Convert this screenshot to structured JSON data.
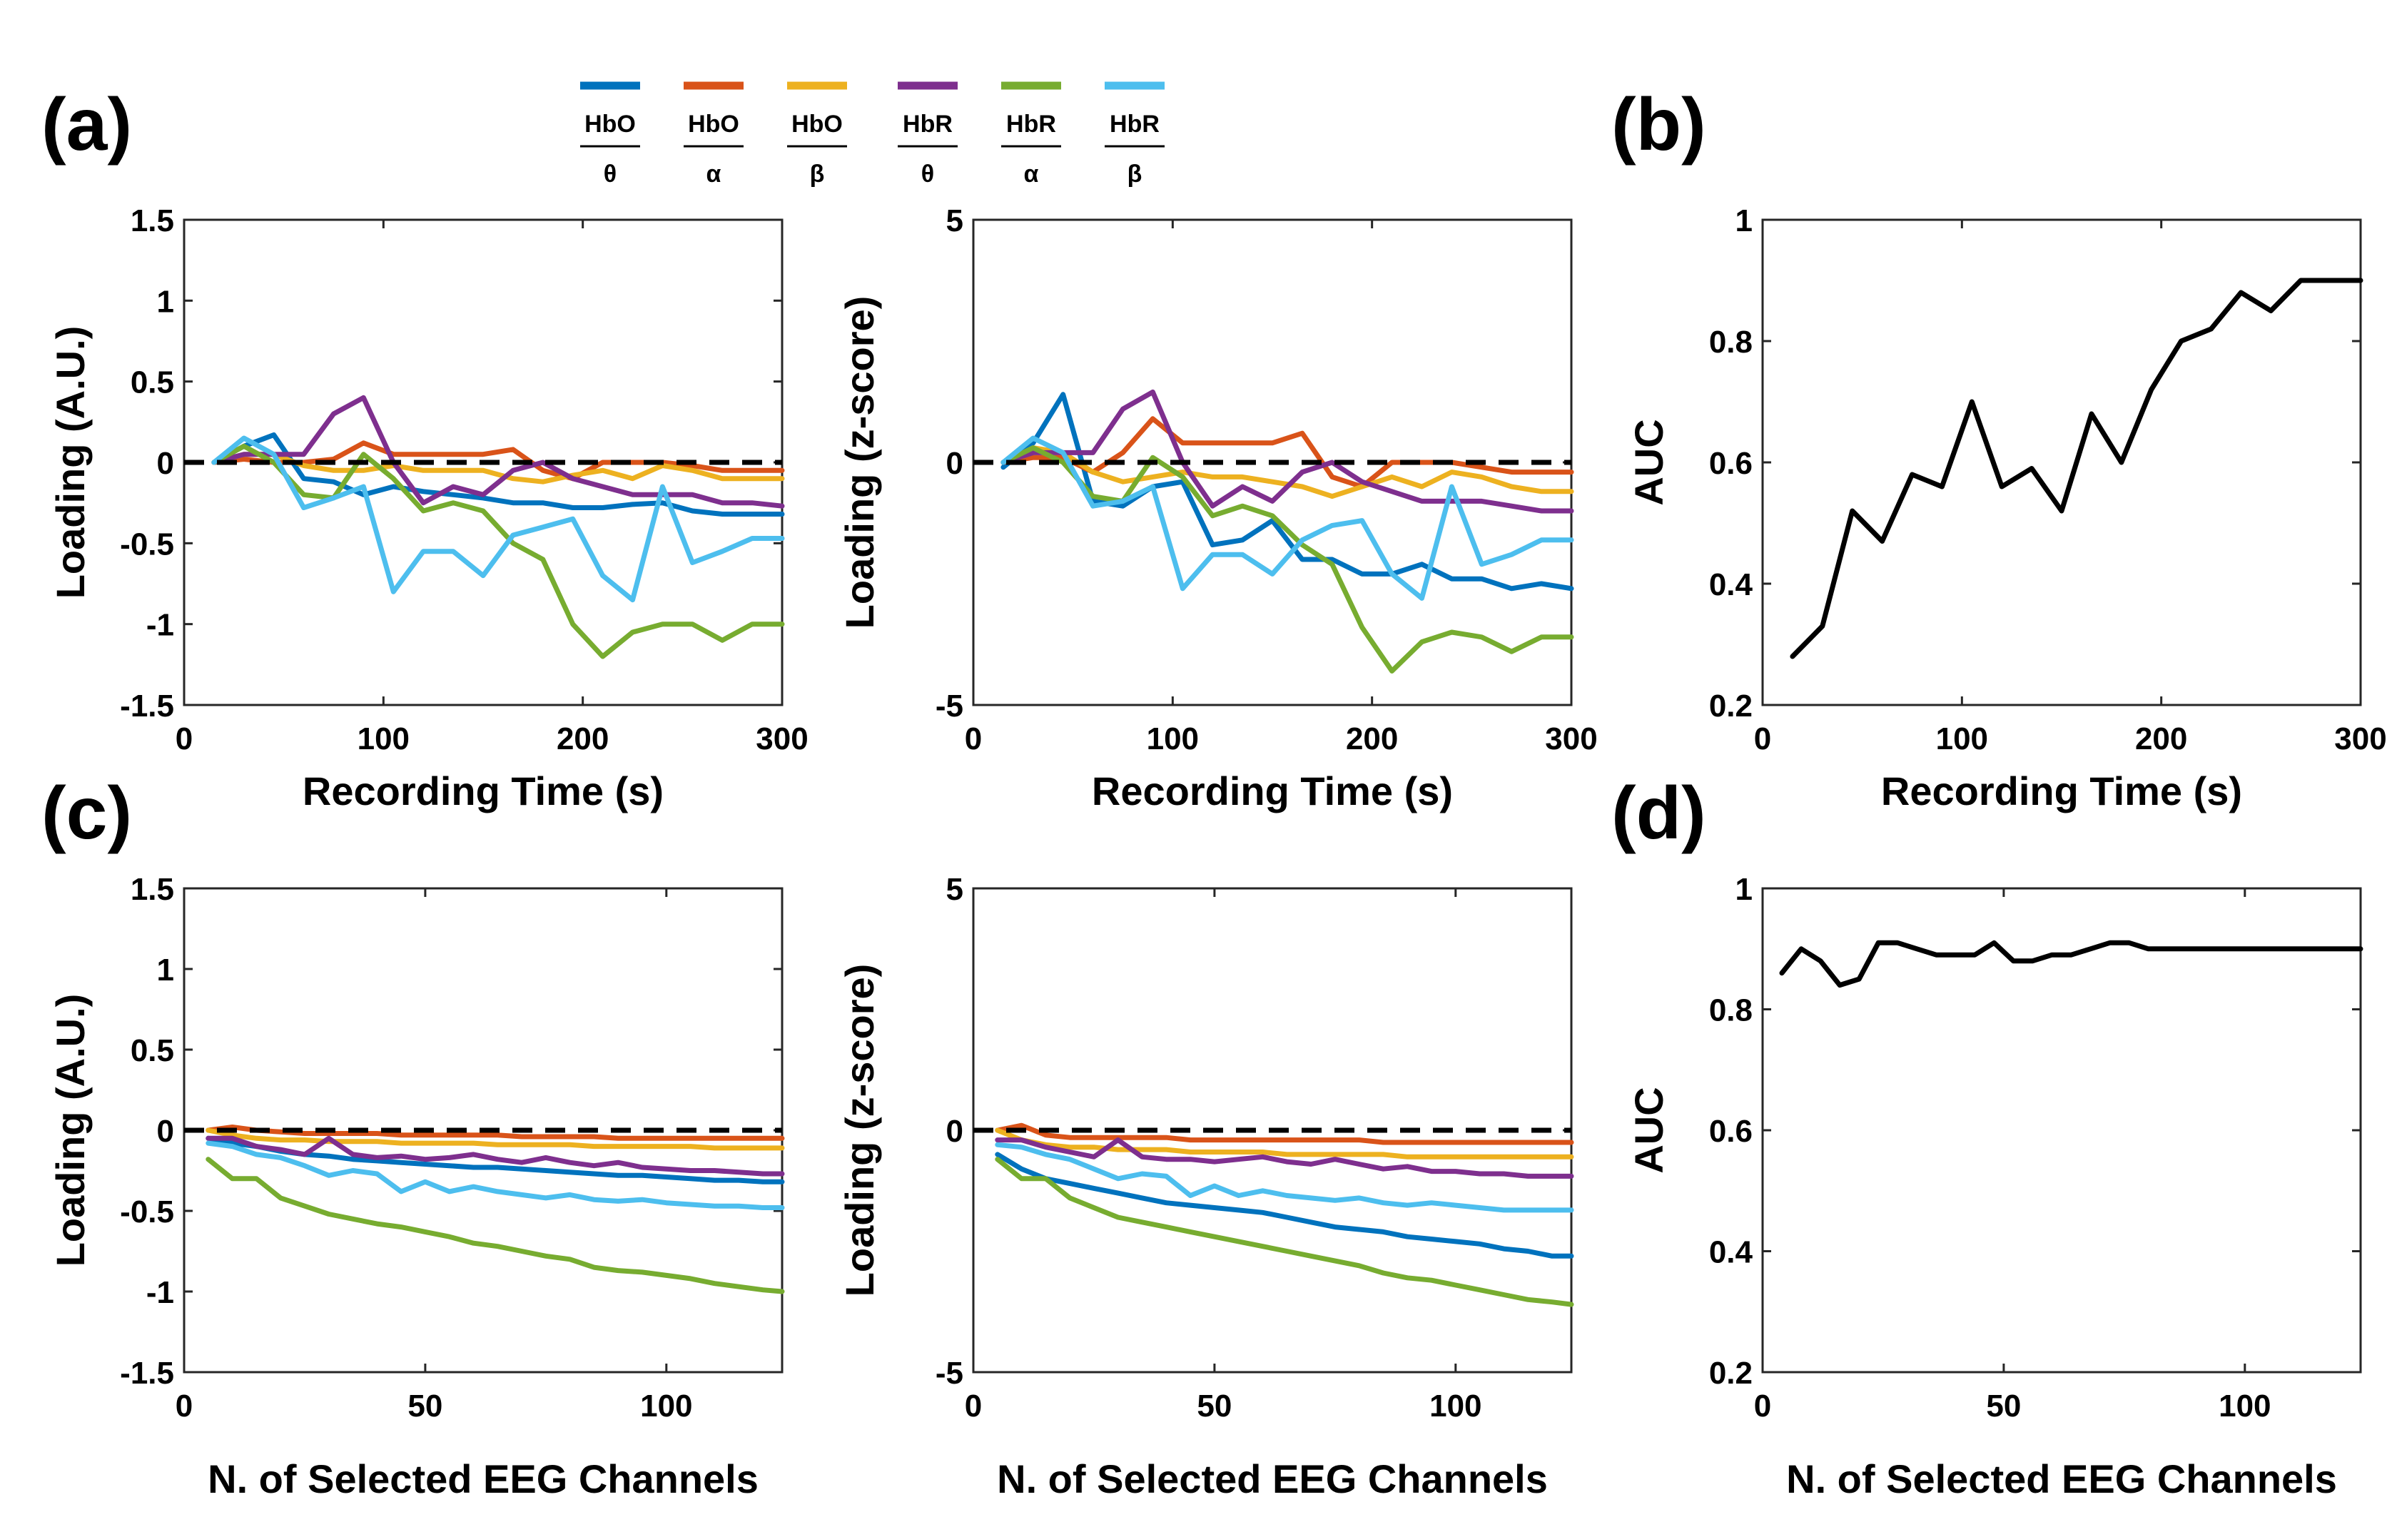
{
  "legend": [
    {
      "num": "HbO",
      "den": "θ",
      "color": "#0072BD"
    },
    {
      "num": "HbO",
      "den": "α",
      "color": "#D95319"
    },
    {
      "num": "HbO",
      "den": "β",
      "color": "#EDB120"
    },
    {
      "num": "HbR",
      "den": "θ",
      "color": "#7E2F8E"
    },
    {
      "num": "HbR",
      "den": "α",
      "color": "#77AC30"
    },
    {
      "num": "HbR",
      "den": "β",
      "color": "#4DBEEE"
    }
  ],
  "panel_labels": {
    "a": "(a)",
    "b": "(b)",
    "c": "(c)",
    "d": "(d)"
  },
  "chart_data": [
    {
      "id": "a1",
      "type": "line",
      "xlabel": "Recording Time (s)",
      "ylabel": "Loading (A.U.)",
      "xlim": [
        0,
        300
      ],
      "ylim": [
        -1.5,
        1.5
      ],
      "xticks": [
        0,
        100,
        200,
        300
      ],
      "xtick_labels": [
        "0",
        "100",
        "200",
        "300"
      ],
      "yticks": [
        -1.5,
        -1,
        -0.5,
        0,
        0.5,
        1,
        1.5
      ],
      "ytick_labels": [
        "-1.5",
        "-1",
        "-0.5",
        "0",
        "0.5",
        "1",
        "1.5"
      ],
      "reference_line": 0,
      "x": [
        15,
        30,
        45,
        60,
        75,
        90,
        105,
        120,
        135,
        150,
        165,
        180,
        195,
        210,
        225,
        240,
        255,
        270,
        285,
        300
      ],
      "series": [
        {
          "name": "HbO/θ",
          "values": [
            0,
            0.1,
            0.17,
            -0.1,
            -0.12,
            -0.2,
            -0.15,
            -0.18,
            -0.2,
            -0.22,
            -0.25,
            -0.25,
            -0.28,
            -0.28,
            -0.26,
            -0.25,
            -0.3,
            -0.32,
            -0.32,
            -0.32
          ]
        },
        {
          "name": "HbO/α",
          "values": [
            0,
            0.02,
            0,
            0,
            0.02,
            0.12,
            0.05,
            0.05,
            0.05,
            0.05,
            0.08,
            -0.05,
            -0.1,
            0,
            0,
            0,
            -0.02,
            -0.05,
            -0.05,
            -0.05
          ]
        },
        {
          "name": "HbO/β",
          "values": [
            0,
            0.05,
            0.05,
            -0.02,
            -0.05,
            -0.05,
            -0.02,
            -0.05,
            -0.05,
            -0.05,
            -0.1,
            -0.12,
            -0.08,
            -0.05,
            -0.1,
            -0.02,
            -0.05,
            -0.1,
            -0.1,
            -0.1
          ]
        },
        {
          "name": "HbR/θ",
          "values": [
            0,
            0.05,
            0.05,
            0.05,
            0.3,
            0.4,
            0,
            -0.25,
            -0.15,
            -0.2,
            -0.05,
            0,
            -0.1,
            -0.15,
            -0.2,
            -0.2,
            -0.2,
            -0.25,
            -0.25,
            -0.27
          ]
        },
        {
          "name": "HbR/α",
          "values": [
            0,
            0.1,
            0,
            -0.2,
            -0.22,
            0.05,
            -0.1,
            -0.3,
            -0.25,
            -0.3,
            -0.5,
            -0.6,
            -1,
            -1.2,
            -1.05,
            -1,
            -1,
            -1.1,
            -1,
            -1
          ]
        },
        {
          "name": "HbR/β",
          "values": [
            0,
            0.15,
            0.05,
            -0.28,
            -0.22,
            -0.15,
            -0.8,
            -0.55,
            -0.55,
            -0.7,
            -0.45,
            -0.4,
            -0.35,
            -0.7,
            -0.85,
            -0.15,
            -0.62,
            -0.55,
            -0.47,
            -0.47
          ]
        }
      ]
    },
    {
      "id": "a2",
      "type": "line",
      "xlabel": "Recording Time (s)",
      "ylabel": "Loading (z-score)",
      "xlim": [
        0,
        300
      ],
      "ylim": [
        -5,
        5
      ],
      "xticks": [
        0,
        100,
        200,
        300
      ],
      "xtick_labels": [
        "0",
        "100",
        "200",
        "300"
      ],
      "yticks": [
        -5,
        0,
        5
      ],
      "ytick_labels": [
        "-5",
        "0",
        "5"
      ],
      "reference_line": 0,
      "x": [
        15,
        30,
        45,
        60,
        75,
        90,
        105,
        120,
        135,
        150,
        165,
        180,
        195,
        210,
        225,
        240,
        255,
        270,
        285,
        300
      ],
      "series": [
        {
          "name": "HbO/θ",
          "values": [
            -0.1,
            0.4,
            1.4,
            -0.8,
            -0.9,
            -0.5,
            -0.4,
            -1.7,
            -1.6,
            -1.2,
            -2,
            -2,
            -2.3,
            -2.3,
            -2.1,
            -2.4,
            -2.4,
            -2.6,
            -2.5,
            -2.6
          ]
        },
        {
          "name": "HbO/α",
          "values": [
            0,
            0.1,
            0.1,
            -0.2,
            0.2,
            0.9,
            0.4,
            0.4,
            0.4,
            0.4,
            0.6,
            -0.3,
            -0.5,
            0,
            0,
            0,
            -0.1,
            -0.2,
            -0.2,
            -0.2
          ]
        },
        {
          "name": "HbO/β",
          "values": [
            0,
            0.3,
            0.2,
            -0.2,
            -0.4,
            -0.3,
            -0.2,
            -0.3,
            -0.3,
            -0.4,
            -0.5,
            -0.7,
            -0.5,
            -0.3,
            -0.5,
            -0.2,
            -0.3,
            -0.5,
            -0.6,
            -0.6
          ]
        },
        {
          "name": "HbR/θ",
          "values": [
            0,
            0.2,
            0.2,
            0.2,
            1.1,
            1.45,
            0,
            -0.9,
            -0.5,
            -0.8,
            -0.2,
            0,
            -0.4,
            -0.6,
            -0.8,
            -0.8,
            -0.8,
            -0.9,
            -1,
            -1
          ]
        },
        {
          "name": "HbR/α",
          "values": [
            0,
            0.3,
            0,
            -0.7,
            -0.8,
            0.1,
            -0.3,
            -1.1,
            -0.9,
            -1.1,
            -1.7,
            -2.1,
            -3.4,
            -4.3,
            -3.7,
            -3.5,
            -3.6,
            -3.9,
            -3.6,
            -3.6
          ]
        },
        {
          "name": "HbR/β",
          "values": [
            0,
            0.5,
            0.2,
            -0.9,
            -0.8,
            -0.5,
            -2.6,
            -1.9,
            -1.9,
            -2.3,
            -1.6,
            -1.3,
            -1.2,
            -2.3,
            -2.8,
            -0.5,
            -2.1,
            -1.9,
            -1.6,
            -1.6
          ]
        }
      ]
    },
    {
      "id": "b",
      "type": "line",
      "xlabel": "Recording Time (s)",
      "ylabel": "AUC",
      "xlim": [
        0,
        300
      ],
      "ylim": [
        0.2,
        1
      ],
      "xticks": [
        0,
        100,
        200,
        300
      ],
      "xtick_labels": [
        "0",
        "100",
        "200",
        "300"
      ],
      "yticks": [
        0.2,
        0.4,
        0.6,
        0.8,
        1
      ],
      "ytick_labels": [
        "0.2",
        "0.4",
        "0.6",
        "0.8",
        "1"
      ],
      "x": [
        15,
        30,
        45,
        60,
        75,
        90,
        105,
        120,
        135,
        150,
        165,
        180,
        195,
        210,
        225,
        240,
        255,
        270,
        285,
        300
      ],
      "series": [
        {
          "name": "AUC",
          "values": [
            0.28,
            0.33,
            0.52,
            0.47,
            0.58,
            0.56,
            0.7,
            0.56,
            0.59,
            0.52,
            0.68,
            0.6,
            0.72,
            0.8,
            0.82,
            0.88,
            0.85,
            0.9,
            0.9,
            0.9
          ]
        }
      ]
    },
    {
      "id": "c1",
      "type": "line",
      "xlabel": "N. of Selected EEG Channels",
      "ylabel": "Loading (A.U.)",
      "xlim": [
        0,
        124
      ],
      "ylim": [
        -1.5,
        1.5
      ],
      "xticks": [
        0,
        50,
        100
      ],
      "xtick_labels": [
        "0",
        "50",
        "100"
      ],
      "yticks": [
        -1.5,
        -1,
        -0.5,
        0,
        0.5,
        1,
        1.5
      ],
      "ytick_labels": [
        "-1.5",
        "-1",
        "-0.5",
        "0",
        "0.5",
        "1",
        "1.5"
      ],
      "reference_line": 0,
      "x": [
        5,
        10,
        15,
        20,
        25,
        30,
        35,
        40,
        45,
        50,
        55,
        60,
        65,
        70,
        75,
        80,
        85,
        90,
        95,
        100,
        105,
        110,
        115,
        120,
        124
      ],
      "series": [
        {
          "name": "HbO/θ",
          "values": [
            -0.05,
            -0.08,
            -0.1,
            -0.13,
            -0.15,
            -0.16,
            -0.18,
            -0.19,
            -0.2,
            -0.21,
            -0.22,
            -0.23,
            -0.23,
            -0.24,
            -0.25,
            -0.26,
            -0.27,
            -0.28,
            -0.28,
            -0.29,
            -0.3,
            -0.31,
            -0.31,
            -0.32,
            -0.32
          ]
        },
        {
          "name": "HbO/α",
          "values": [
            0,
            0.02,
            0,
            -0.01,
            -0.02,
            -0.02,
            -0.02,
            -0.02,
            -0.03,
            -0.03,
            -0.03,
            -0.03,
            -0.03,
            -0.04,
            -0.04,
            -0.04,
            -0.04,
            -0.05,
            -0.05,
            -0.05,
            -0.05,
            -0.05,
            -0.05,
            -0.05,
            -0.05
          ]
        },
        {
          "name": "HbO/β",
          "values": [
            0,
            -0.03,
            -0.05,
            -0.06,
            -0.06,
            -0.07,
            -0.07,
            -0.07,
            -0.08,
            -0.08,
            -0.08,
            -0.08,
            -0.09,
            -0.09,
            -0.09,
            -0.09,
            -0.1,
            -0.1,
            -0.1,
            -0.1,
            -0.1,
            -0.11,
            -0.11,
            -0.11,
            -0.11
          ]
        },
        {
          "name": "HbR/θ",
          "values": [
            -0.05,
            -0.05,
            -0.1,
            -0.12,
            -0.15,
            -0.05,
            -0.15,
            -0.17,
            -0.16,
            -0.18,
            -0.17,
            -0.15,
            -0.18,
            -0.2,
            -0.17,
            -0.2,
            -0.22,
            -0.2,
            -0.23,
            -0.24,
            -0.25,
            -0.25,
            -0.26,
            -0.27,
            -0.27
          ]
        },
        {
          "name": "HbR/α",
          "values": [
            -0.18,
            -0.3,
            -0.3,
            -0.42,
            -0.47,
            -0.52,
            -0.55,
            -0.58,
            -0.6,
            -0.63,
            -0.66,
            -0.7,
            -0.72,
            -0.75,
            -0.78,
            -0.8,
            -0.85,
            -0.87,
            -0.88,
            -0.9,
            -0.92,
            -0.95,
            -0.97,
            -0.99,
            -1
          ]
        },
        {
          "name": "HbR/β",
          "values": [
            -0.08,
            -0.1,
            -0.15,
            -0.17,
            -0.22,
            -0.28,
            -0.25,
            -0.27,
            -0.38,
            -0.32,
            -0.38,
            -0.35,
            -0.38,
            -0.4,
            -0.42,
            -0.4,
            -0.43,
            -0.44,
            -0.43,
            -0.45,
            -0.46,
            -0.47,
            -0.47,
            -0.48,
            -0.48
          ]
        }
      ]
    },
    {
      "id": "c2",
      "type": "line",
      "xlabel": "N. of Selected EEG Channels",
      "ylabel": "Loading (z-score)",
      "xlim": [
        0,
        124
      ],
      "ylim": [
        -5,
        5
      ],
      "xticks": [
        0,
        50,
        100
      ],
      "xtick_labels": [
        "0",
        "50",
        "100"
      ],
      "yticks": [
        -5,
        0,
        5
      ],
      "ytick_labels": [
        "-5",
        "0",
        "5"
      ],
      "reference_line": 0,
      "x": [
        5,
        10,
        15,
        20,
        25,
        30,
        35,
        40,
        45,
        50,
        55,
        60,
        65,
        70,
        75,
        80,
        85,
        90,
        95,
        100,
        105,
        110,
        115,
        120,
        124
      ],
      "series": [
        {
          "name": "HbO/θ",
          "values": [
            -0.5,
            -0.8,
            -1,
            -1.1,
            -1.2,
            -1.3,
            -1.4,
            -1.5,
            -1.55,
            -1.6,
            -1.65,
            -1.7,
            -1.8,
            -1.9,
            -2,
            -2.05,
            -2.1,
            -2.2,
            -2.25,
            -2.3,
            -2.35,
            -2.45,
            -2.5,
            -2.6,
            -2.6
          ]
        },
        {
          "name": "HbO/α",
          "values": [
            0,
            0.1,
            -0.1,
            -0.15,
            -0.15,
            -0.15,
            -0.15,
            -0.15,
            -0.2,
            -0.2,
            -0.2,
            -0.2,
            -0.2,
            -0.2,
            -0.2,
            -0.2,
            -0.25,
            -0.25,
            -0.25,
            -0.25,
            -0.25,
            -0.25,
            -0.25,
            -0.25,
            -0.25
          ]
        },
        {
          "name": "HbO/β",
          "values": [
            0,
            -0.2,
            -0.3,
            -0.35,
            -0.35,
            -0.4,
            -0.4,
            -0.4,
            -0.45,
            -0.45,
            -0.45,
            -0.45,
            -0.5,
            -0.5,
            -0.5,
            -0.5,
            -0.5,
            -0.55,
            -0.55,
            -0.55,
            -0.55,
            -0.55,
            -0.55,
            -0.55,
            -0.55
          ]
        },
        {
          "name": "HbR/θ",
          "values": [
            -0.2,
            -0.2,
            -0.35,
            -0.45,
            -0.55,
            -0.2,
            -0.55,
            -0.6,
            -0.6,
            -0.65,
            -0.6,
            -0.55,
            -0.65,
            -0.7,
            -0.6,
            -0.7,
            -0.8,
            -0.75,
            -0.85,
            -0.85,
            -0.9,
            -0.9,
            -0.95,
            -0.95,
            -0.95
          ]
        },
        {
          "name": "HbR/α",
          "values": [
            -0.6,
            -1,
            -1,
            -1.4,
            -1.6,
            -1.8,
            -1.9,
            -2,
            -2.1,
            -2.2,
            -2.3,
            -2.4,
            -2.5,
            -2.6,
            -2.7,
            -2.8,
            -2.95,
            -3.05,
            -3.1,
            -3.2,
            -3.3,
            -3.4,
            -3.5,
            -3.55,
            -3.6
          ]
        },
        {
          "name": "HbR/β",
          "values": [
            -0.3,
            -0.35,
            -0.5,
            -0.6,
            -0.8,
            -1,
            -0.9,
            -0.95,
            -1.35,
            -1.15,
            -1.35,
            -1.25,
            -1.35,
            -1.4,
            -1.45,
            -1.4,
            -1.5,
            -1.55,
            -1.5,
            -1.55,
            -1.6,
            -1.65,
            -1.65,
            -1.65,
            -1.65
          ]
        }
      ]
    },
    {
      "id": "d",
      "type": "line",
      "xlabel": "N. of Selected EEG Channels",
      "ylabel": "AUC",
      "xlim": [
        0,
        124
      ],
      "ylim": [
        0.2,
        1
      ],
      "xticks": [
        0,
        50,
        100
      ],
      "xtick_labels": [
        "0",
        "50",
        "100"
      ],
      "yticks": [
        0.2,
        0.4,
        0.6,
        0.8,
        1
      ],
      "ytick_labels": [
        "0.2",
        "0.4",
        "0.6",
        "0.8",
        "1"
      ],
      "x": [
        4,
        8,
        12,
        16,
        20,
        24,
        28,
        32,
        36,
        40,
        44,
        48,
        52,
        56,
        60,
        64,
        68,
        72,
        76,
        80,
        84,
        88,
        92,
        96,
        100,
        104,
        108,
        112,
        116,
        120,
        124
      ],
      "series": [
        {
          "name": "AUC",
          "values": [
            0.86,
            0.9,
            0.88,
            0.84,
            0.85,
            0.91,
            0.91,
            0.9,
            0.89,
            0.89,
            0.89,
            0.91,
            0.88,
            0.88,
            0.89,
            0.89,
            0.9,
            0.91,
            0.91,
            0.9,
            0.9,
            0.9,
            0.9,
            0.9,
            0.9,
            0.9,
            0.9,
            0.9,
            0.9,
            0.9,
            0.9
          ]
        }
      ]
    }
  ]
}
